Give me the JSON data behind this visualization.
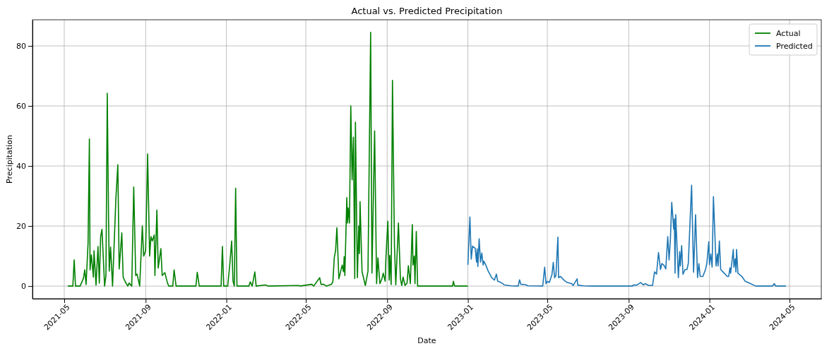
{
  "chart_data": {
    "type": "line",
    "title": "Actual vs. Predicted Precipitation",
    "xlabel": "Date",
    "ylabel": "Precipitation",
    "xlim": [
      "2021-03-14",
      "2024-06-18"
    ],
    "xticks": [
      "2021-05",
      "2021-09",
      "2022-01",
      "2022-05",
      "2022-09",
      "2023-01",
      "2023-05",
      "2023-09",
      "2024-01",
      "2024-05"
    ],
    "ylim": [
      -4.2,
      88.7
    ],
    "yticks": [
      0,
      20,
      40,
      60,
      80
    ],
    "grid": true,
    "legend": "top right",
    "marker": "none",
    "line_style": "solid",
    "series": [
      {
        "name": "Actual",
        "color": "#008000",
        "x": [
          "2021-05-07",
          "2021-05-14",
          "2021-05-16",
          "2021-05-18",
          "2021-05-25",
          "2021-05-30",
          "2021-06-01",
          "2021-06-03",
          "2021-06-06",
          "2021-06-08",
          "2021-06-09",
          "2021-06-11",
          "2021-06-14",
          "2021-06-15",
          "2021-06-18",
          "2021-06-21",
          "2021-06-23",
          "2021-06-25",
          "2021-06-27",
          "2021-07-01",
          "2021-07-03",
          "2021-07-05",
          "2021-07-07",
          "2021-07-08",
          "2021-07-10",
          "2021-07-13",
          "2021-07-18",
          "2021-07-21",
          "2021-07-23",
          "2021-07-27",
          "2021-07-29",
          "2021-08-01",
          "2021-08-05",
          "2021-08-07",
          "2021-08-11",
          "2021-08-14",
          "2021-08-17",
          "2021-08-19",
          "2021-08-23",
          "2021-08-27",
          "2021-08-29",
          "2021-09-01",
          "2021-09-04",
          "2021-09-07",
          "2021-09-09",
          "2021-09-11",
          "2021-09-14",
          "2021-09-15",
          "2021-09-18",
          "2021-09-20",
          "2021-09-24",
          "2021-09-26",
          "2021-09-30",
          "2021-10-04",
          "2021-10-06",
          "2021-10-12",
          "2021-10-14",
          "2021-10-17",
          "2021-11-16",
          "2021-11-18",
          "2021-11-21",
          "2021-12-24",
          "2021-12-26",
          "2021-12-28",
          "2022-01-03",
          "2022-01-06",
          "2022-01-09",
          "2022-01-11",
          "2022-01-13",
          "2022-01-15",
          "2022-01-17",
          "2022-02-04",
          "2022-02-06",
          "2022-02-09",
          "2022-02-13",
          "2022-02-15",
          "2022-03-01",
          "2022-03-05",
          "2022-04-20",
          "2022-04-22",
          "2022-05-10",
          "2022-05-13",
          "2022-05-22",
          "2022-05-24",
          "2022-05-28",
          "2022-06-01",
          "2022-06-09",
          "2022-06-11",
          "2022-06-13",
          "2022-06-15",
          "2022-06-17",
          "2022-06-20",
          "2022-06-25",
          "2022-06-27",
          "2022-06-28",
          "2022-06-29",
          "2022-07-02",
          "2022-07-03",
          "2022-07-04",
          "2022-07-06",
          "2022-07-08",
          "2022-07-10",
          "2022-07-12",
          "2022-07-14",
          "2022-07-15",
          "2022-07-18",
          "2022-07-20",
          "2022-07-21",
          "2022-07-22",
          "2022-07-25",
          "2022-07-30",
          "2022-08-03",
          "2022-08-07",
          "2022-08-09",
          "2022-08-13",
          "2022-08-16",
          "2022-08-18",
          "2022-08-21",
          "2022-08-24",
          "2022-08-26",
          "2022-08-29",
          "2022-08-30",
          "2022-09-02",
          "2022-09-04",
          "2022-09-05",
          "2022-09-07",
          "2022-09-09",
          "2022-09-12",
          "2022-09-14",
          "2022-09-18",
          "2022-09-21",
          "2022-09-23",
          "2022-09-25",
          "2022-09-28",
          "2022-10-01",
          "2022-10-03",
          "2022-10-06",
          "2022-10-09",
          "2022-10-10",
          "2022-10-12",
          "2022-10-13",
          "2022-10-15",
          "2022-10-17",
          "2022-12-09",
          "2022-12-10",
          "2022-12-12",
          "2022-12-31"
        ],
        "values": [
          0,
          0,
          8.7,
          0,
          0,
          2.6,
          5.4,
          0.5,
          14.4,
          49,
          5.4,
          10.4,
          3,
          11.8,
          0.3,
          13.2,
          1,
          16.5,
          18.9,
          0,
          3.5,
          64.2,
          22,
          5,
          13,
          0,
          29,
          40.4,
          5.7,
          17.7,
          3,
          1.5,
          0,
          1,
          0,
          33,
          3.5,
          4,
          0,
          20,
          10,
          11.8,
          44,
          10,
          16.5,
          15,
          17,
          3.5,
          25.3,
          6,
          12.5,
          3.5,
          4.5,
          1,
          0,
          0,
          5.4,
          0,
          0,
          4.6,
          0,
          0,
          13.2,
          0,
          0,
          6.8,
          15,
          1.6,
          0,
          32.6,
          0,
          0,
          1.4,
          0,
          4.7,
          0,
          0.4,
          0,
          0.2,
          0,
          0.6,
          0,
          2.8,
          0.6,
          0.6,
          0,
          0.6,
          1.6,
          9.4,
          11.8,
          19.4,
          2.4,
          7,
          4.8,
          9.8,
          3.5,
          29.5,
          21,
          26,
          21,
          60,
          35.4,
          49.6,
          2.5,
          54.6,
          2.8,
          20,
          10.8,
          28.1,
          4.8,
          0.2,
          5,
          84.5,
          4.3,
          51.7,
          0.8,
          9.4,
          0.8,
          2.4,
          4.3,
          1.6,
          9,
          21.6,
          2,
          10.2,
          0.5,
          68.5,
          13.4,
          0.4,
          21,
          2.4,
          0.2,
          3,
          0.2,
          1,
          6.8,
          0.8,
          20.5,
          7,
          10,
          0.8,
          18.2,
          0,
          0,
          1.6,
          0,
          0
        ]
      },
      {
        "name": "Predicted",
        "color": "#1f77b4",
        "x": [
          "2023-01-01",
          "2023-01-04",
          "2023-01-06",
          "2023-01-08",
          "2023-01-12",
          "2023-01-14",
          "2023-01-15",
          "2023-01-16",
          "2023-01-18",
          "2023-01-20",
          "2023-01-22",
          "2023-01-24",
          "2023-01-25",
          "2023-01-28",
          "2023-02-01",
          "2023-02-06",
          "2023-02-10",
          "2023-02-13",
          "2023-02-15",
          "2023-02-20",
          "2023-02-25",
          "2023-03-07",
          "2023-03-18",
          "2023-03-20",
          "2023-03-22",
          "2023-03-28",
          "2023-04-02",
          "2023-04-24",
          "2023-04-27",
          "2023-04-29",
          "2023-05-01",
          "2023-05-04",
          "2023-05-08",
          "2023-05-10",
          "2023-05-12",
          "2023-05-14",
          "2023-05-17",
          "2023-05-18",
          "2023-05-21",
          "2023-05-26",
          "2023-05-31",
          "2023-06-07",
          "2023-06-09",
          "2023-06-15",
          "2023-06-16",
          "2023-06-25",
          "2023-07-06",
          "2023-09-07",
          "2023-09-08",
          "2023-09-13",
          "2023-09-19",
          "2023-09-23",
          "2023-09-26",
          "2023-10-01",
          "2023-10-07",
          "2023-10-10",
          "2023-10-13",
          "2023-10-16",
          "2023-10-19",
          "2023-10-21",
          "2023-10-24",
          "2023-10-27",
          "2023-10-30",
          "2023-11-01",
          "2023-11-03",
          "2023-11-05",
          "2023-11-08",
          "2023-11-09",
          "2023-11-10",
          "2023-11-11",
          "2023-11-15",
          "2023-11-17",
          "2023-11-18",
          "2023-11-20",
          "2023-11-22",
          "2023-11-25",
          "2023-11-28",
          "2023-11-30",
          "2023-12-05",
          "2023-12-08",
          "2023-12-11",
          "2023-12-14",
          "2023-12-16",
          "2023-12-18",
          "2023-12-22",
          "2023-12-26",
          "2023-12-28",
          "2023-12-31",
          "2024-01-01",
          "2024-01-03",
          "2024-01-05",
          "2024-01-07",
          "2024-01-11",
          "2024-01-13",
          "2024-01-14",
          "2024-01-16",
          "2024-01-18",
          "2024-01-22",
          "2024-01-28",
          "2024-01-30",
          "2024-02-01",
          "2024-02-02",
          "2024-02-06",
          "2024-02-07",
          "2024-02-09",
          "2024-02-10",
          "2024-02-11",
          "2024-02-13",
          "2024-02-19",
          "2024-02-24",
          "2024-03-02",
          "2024-03-11",
          "2024-04-05",
          "2024-04-08",
          "2024-04-10",
          "2024-04-25"
        ],
        "values": [
          7.2,
          23,
          9,
          13.3,
          12.6,
          8,
          12.4,
          6.5,
          15.8,
          8,
          11,
          7,
          8.3,
          7,
          4.8,
          2.8,
          2,
          4,
          1.6,
          1.2,
          0.4,
          0.1,
          0,
          2.1,
          0.6,
          0.5,
          0.1,
          0,
          6.3,
          0.8,
          1.6,
          1.2,
          3.8,
          7.9,
          2.8,
          3.5,
          16.3,
          2.8,
          3.2,
          2,
          1.2,
          0.8,
          0.2,
          2.4,
          0.3,
          0.1,
          0,
          0,
          0.4,
          0.3,
          1.2,
          0.4,
          0.8,
          0.2,
          0.2,
          4.7,
          4,
          11.2,
          5.5,
          7.5,
          7,
          5.7,
          16.5,
          8.7,
          15.7,
          27.9,
          18.9,
          22.4,
          4.3,
          23.8,
          2.8,
          11.5,
          6.7,
          13.5,
          3.9,
          5.5,
          5.5,
          7.5,
          33.6,
          4.6,
          23.8,
          2.8,
          7.5,
          3.2,
          3.2,
          5.5,
          7.5,
          14.8,
          7.1,
          10.7,
          6.3,
          29.8,
          6.7,
          10.7,
          6.7,
          15,
          5.5,
          4.6,
          3.2,
          3.2,
          6.1,
          4.3,
          12.2,
          6.3,
          9.1,
          4.7,
          12.2,
          4.3,
          3.2,
          1.6,
          0.9,
          0,
          0,
          0.8,
          0,
          0
        ]
      }
    ]
  }
}
